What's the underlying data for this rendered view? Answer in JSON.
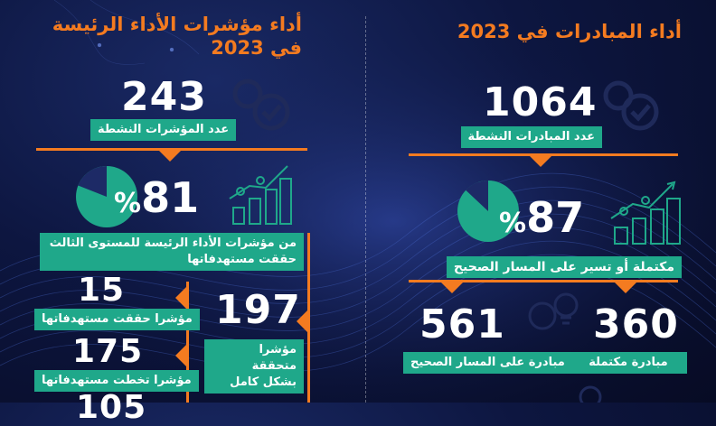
{
  "right_panel": {
    "title": "أداء المبادرات في 2023",
    "total_number": "1064",
    "total_label": "عدد المبادرات النشطة",
    "percent_number": "87",
    "percent_sign": "%",
    "percent_value": 87,
    "percent_label": "مكتملة أو تسير على المسار الصحيح",
    "completed_number": "360",
    "completed_label": "مبادرة مكتملة",
    "ontrack_number": "561",
    "ontrack_label": "مبادرة على المسار الصحيح"
  },
  "left_panel": {
    "title_line1": "أداء مؤشرات الأداء الرئيسة",
    "title_line2": "في 2023",
    "total_number": "243",
    "total_label": "عدد المؤشرات النشطة",
    "percent_number": "81",
    "percent_sign": "%",
    "percent_value": 81,
    "percent_label_line1": "من مؤشرات الأداء الرئيسة للمستوى الثالث",
    "percent_label_line2": "حققت مستهدفاتها",
    "achieved_full_number": "197",
    "achieved_full_label_line1": "مؤشرا متحققة",
    "achieved_full_label_line2": "بشكل كامل",
    "met_target_number": "15",
    "met_target_label": "مؤشرا حققت مستهدفاتها",
    "exceeded_number": "175",
    "exceeded_label": "مؤشرا تخطت مستهدفاتها",
    "partial_number": "105"
  },
  "colors": {
    "accent_orange": "#f47b20",
    "teal": "#1fa88a",
    "background": "#0d1640"
  },
  "icons": [
    "gear-check-icon",
    "pie-chart-icon",
    "growth-people-icon",
    "lightbulb-gear-icon"
  ]
}
